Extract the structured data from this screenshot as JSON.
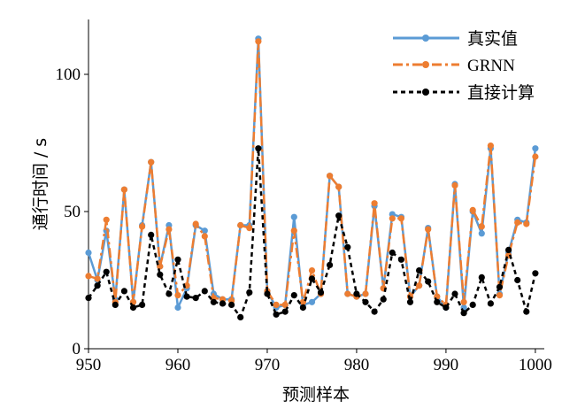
{
  "chart_data": {
    "type": "line",
    "title": "",
    "xlabel": "预测样本",
    "ylabel": "通行时间 / s",
    "xlim": [
      950,
      1001
    ],
    "ylim": [
      0,
      120
    ],
    "x_ticks": [
      950,
      960,
      970,
      980,
      990,
      1000
    ],
    "y_ticks": [
      0,
      50,
      100
    ],
    "grid": false,
    "legend_position": "top-right",
    "x": [
      950,
      951,
      952,
      953,
      954,
      955,
      956,
      957,
      958,
      959,
      960,
      961,
      962,
      963,
      964,
      965,
      966,
      967,
      968,
      969,
      970,
      971,
      972,
      973,
      974,
      975,
      976,
      977,
      978,
      979,
      980,
      981,
      982,
      983,
      984,
      985,
      986,
      987,
      988,
      989,
      990,
      991,
      992,
      993,
      994,
      995,
      996,
      997,
      998,
      999,
      1000
    ],
    "series": [
      {
        "name": "真实值",
        "color": "#5b9bd5",
        "style": "solid",
        "values": [
          35,
          25,
          43,
          18,
          58,
          17,
          45,
          68,
          30,
          45,
          15,
          22,
          45,
          43,
          20,
          18,
          18,
          45,
          45,
          113,
          21,
          15,
          16,
          48,
          16,
          17,
          20,
          63,
          59,
          20,
          19,
          20,
          52,
          22,
          49,
          48,
          19,
          23,
          44,
          19,
          15,
          60,
          15,
          50,
          42,
          73,
          20,
          35,
          47,
          46,
          73
        ]
      },
      {
        "name": "GRNN",
        "color": "#ed7d31",
        "style": "dashdot",
        "values": [
          26.5,
          25.5,
          47,
          17,
          58,
          17,
          44.5,
          68,
          30,
          43.5,
          19.5,
          23,
          45.5,
          41,
          18.5,
          18,
          17.5,
          45,
          44,
          112,
          21,
          16,
          16,
          43,
          17,
          28.5,
          20,
          63,
          59,
          20,
          19,
          20,
          53,
          22,
          47.5,
          47.5,
          19,
          23,
          43.5,
          19,
          16,
          59.5,
          17,
          50.5,
          44.5,
          74,
          19.5,
          34,
          46,
          45.5,
          70
        ]
      },
      {
        "name": "直接计算",
        "color": "#000000",
        "style": "dashed",
        "values": [
          18.5,
          23,
          28,
          16,
          21,
          15,
          16,
          41.5,
          27,
          20,
          32.5,
          19,
          18.5,
          21,
          17,
          16.5,
          16,
          11.5,
          20.5,
          73,
          20,
          12.5,
          13.5,
          19.5,
          15,
          25.5,
          20.5,
          30.5,
          48.5,
          37,
          20,
          17,
          13.5,
          18,
          35,
          32.5,
          17,
          28.5,
          24.5,
          17,
          15,
          20,
          13,
          16,
          26,
          16.5,
          22.5,
          36,
          25,
          13.5,
          27.5
        ]
      }
    ]
  }
}
